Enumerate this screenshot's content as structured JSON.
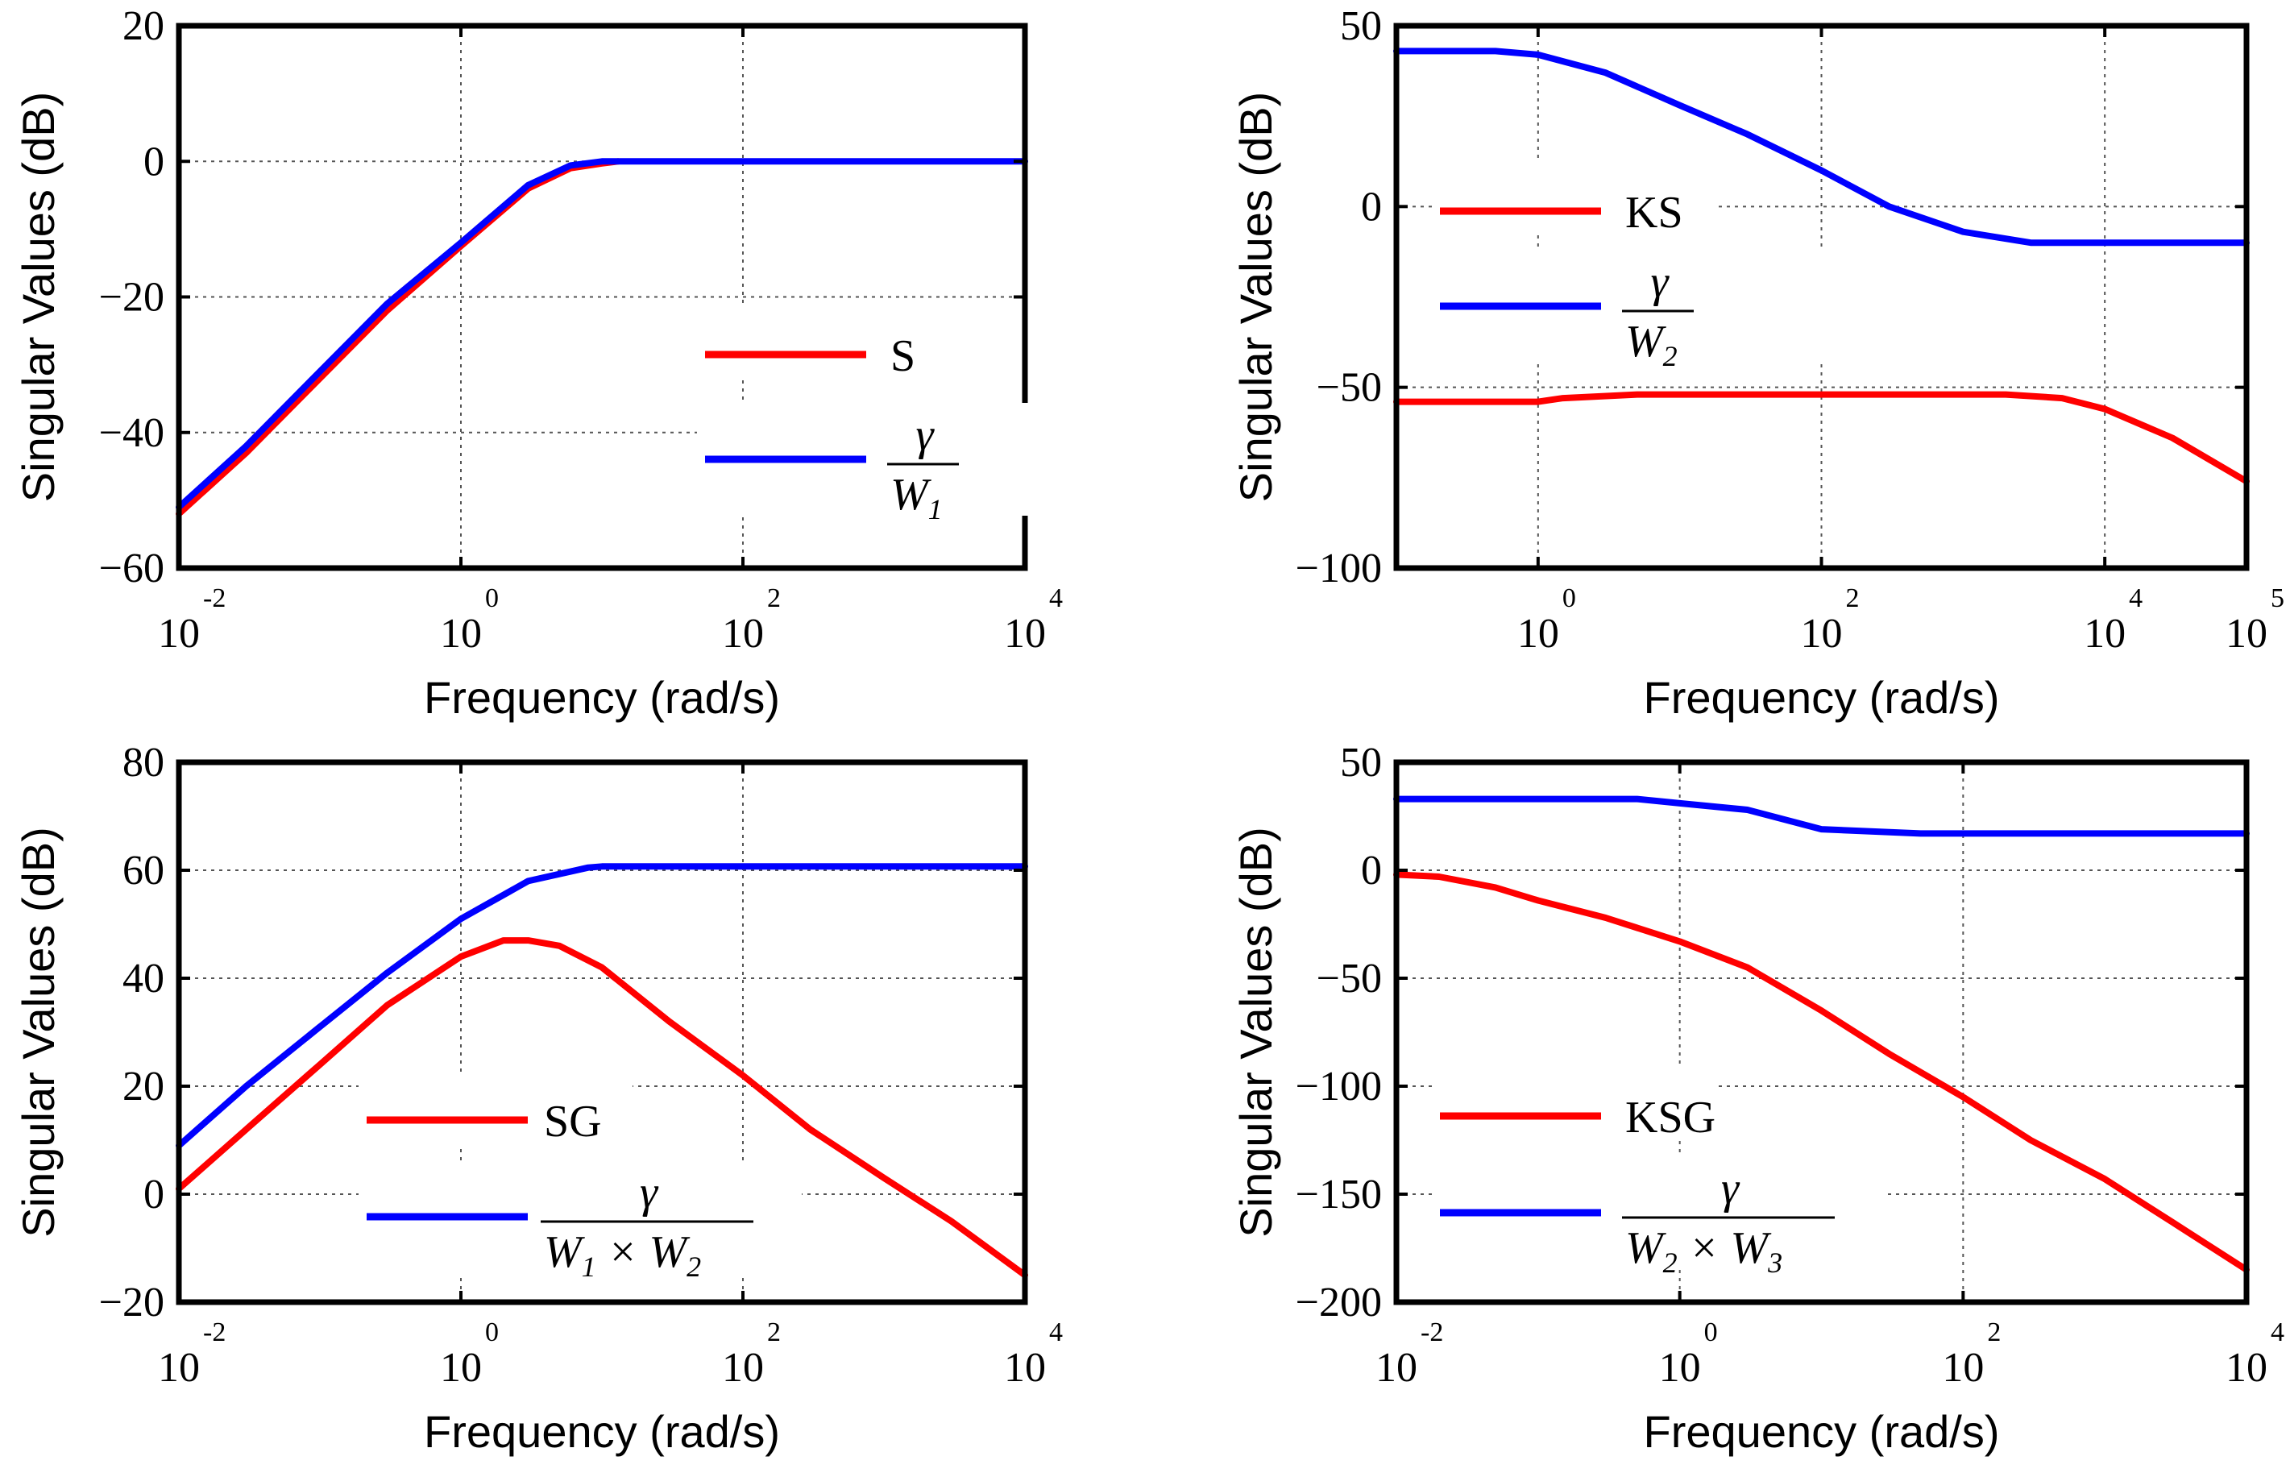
{
  "colors": {
    "red": "#ff0000",
    "blue": "#0000ff",
    "axis": "#000000",
    "grid": "#555555"
  },
  "chart_data": [
    {
      "type": "line",
      "xscale": "log",
      "xlim": [
        0.01,
        10000
      ],
      "ylim": [
        -60,
        20
      ],
      "grid": true,
      "xlabel": "Frequency (rad/s)",
      "ylabel": "Singular Values (dB)",
      "legend_placement": "right",
      "yticks": [
        "20",
        "0",
        "−20",
        "−40",
        "−60"
      ],
      "ytick_values": [
        20,
        0,
        -20,
        -40,
        -60
      ],
      "xticks": [
        {
          "base": "10",
          "exp": "-2"
        },
        {
          "base": "10",
          "exp": "0"
        },
        {
          "base": "10",
          "exp": "2"
        },
        {
          "base": "10",
          "exp": "4"
        }
      ],
      "xtick_values": [
        0.01,
        1,
        100,
        10000
      ],
      "legend": [
        {
          "text": "S",
          "color": "red"
        },
        {
          "num": "γ",
          "den": "W",
          "sub": "1",
          "color": "blue"
        }
      ],
      "series": [
        {
          "legend": "S",
          "color": "red",
          "x": [
            0.01,
            0.03,
            0.1,
            0.3,
            1,
            3,
            6,
            10,
            13
          ],
          "y": [
            -52,
            -43,
            -32,
            -22,
            -12.5,
            -4,
            -1,
            -0.3,
            0
          ]
        },
        {
          "legend": "gamma/W1",
          "color": "blue",
          "x": [
            0.01,
            0.03,
            0.1,
            0.3,
            1,
            3,
            6,
            10,
            100,
            1000,
            10000
          ],
          "y": [
            -51,
            -42,
            -31,
            -21,
            -12,
            -3.5,
            -0.6,
            0,
            0,
            0,
            0
          ]
        }
      ]
    },
    {
      "type": "line",
      "xscale": "log",
      "xlim": [
        0.1,
        100000
      ],
      "ylim": [
        -100,
        50
      ],
      "grid": true,
      "xlabel": "Frequency (rad/s)",
      "ylabel": "Singular Values (dB)",
      "legend_placement": "left",
      "yticks": [
        "50",
        "0",
        "−50",
        "−100"
      ],
      "ytick_values": [
        50,
        0,
        -50,
        -100
      ],
      "xticks": [
        {
          "base": "10",
          "exp": "0"
        },
        {
          "base": "10",
          "exp": "2"
        },
        {
          "base": "10",
          "exp": "4"
        },
        {
          "base": "10",
          "exp": "5"
        }
      ],
      "xtick_values": [
        1,
        100,
        10000,
        100000
      ],
      "legend": [
        {
          "text": "KS",
          "color": "red"
        },
        {
          "num": "γ",
          "den": "W",
          "sub": "2",
          "color": "blue"
        }
      ],
      "series": [
        {
          "legend": "KS",
          "color": "red",
          "x": [
            0.1,
            1,
            1.5,
            5,
            100,
            1000,
            2000,
            5000,
            10000,
            30000,
            100000
          ],
          "y": [
            -54,
            -54,
            -53,
            -52,
            -52,
            -52,
            -52,
            -53,
            -56,
            -64,
            -76
          ]
        },
        {
          "legend": "gamma/W2",
          "color": "blue",
          "x": [
            0.1,
            0.5,
            1,
            3,
            10,
            30,
            100,
            300,
            1000,
            3000,
            100000
          ],
          "y": [
            43,
            43,
            42,
            37,
            28,
            20,
            10,
            0,
            -7,
            -10,
            -10
          ]
        }
      ]
    },
    {
      "type": "line",
      "xscale": "log",
      "xlim": [
        0.01,
        10000
      ],
      "ylim": [
        -20,
        80
      ],
      "grid": true,
      "xlabel": "Frequency (rad/s)",
      "ylabel": "Singular Values (dB)",
      "legend_placement": "bottom-center",
      "yticks": [
        "80",
        "60",
        "40",
        "20",
        "0",
        "−20"
      ],
      "ytick_values": [
        80,
        60,
        40,
        20,
        0,
        -20
      ],
      "xticks": [
        {
          "base": "10",
          "exp": "-2"
        },
        {
          "base": "10",
          "exp": "0"
        },
        {
          "base": "10",
          "exp": "2"
        },
        {
          "base": "10",
          "exp": "4"
        }
      ],
      "xtick_values": [
        0.01,
        1,
        100,
        10000
      ],
      "legend": [
        {
          "text": "SG",
          "color": "red"
        },
        {
          "num": "γ",
          "den": "W₁ × W₂",
          "den_parts": [
            "W",
            "1",
            " × ",
            "W",
            "2"
          ],
          "color": "blue"
        }
      ],
      "series": [
        {
          "legend": "SG",
          "color": "red",
          "x": [
            0.01,
            0.03,
            0.1,
            0.3,
            1,
            2,
            3,
            5,
            10,
            30,
            100,
            300,
            1000,
            3000,
            10000
          ],
          "y": [
            1,
            12,
            24,
            35,
            44,
            47,
            47,
            46,
            42,
            32,
            22,
            12,
            3,
            -5,
            -15
          ]
        },
        {
          "legend": "gamma/(W1xW2)",
          "color": "blue",
          "x": [
            0.01,
            0.03,
            0.1,
            0.3,
            1,
            3,
            8,
            10,
            100,
            1000,
            10000
          ],
          "y": [
            9,
            20,
            31,
            41,
            51,
            58,
            60.5,
            60.7,
            60.7,
            60.7,
            60.7
          ]
        }
      ]
    },
    {
      "type": "line",
      "xscale": "log",
      "xlim": [
        0.01,
        10000
      ],
      "ylim": [
        -200,
        50
      ],
      "grid": true,
      "xlabel": "Frequency (rad/s)",
      "ylabel": "Singular Values (dB)",
      "legend_placement": "bottom-left",
      "yticks": [
        "50",
        "0",
        "−50",
        "−100",
        "−150",
        "−200"
      ],
      "ytick_values": [
        50,
        0,
        -50,
        -100,
        -150,
        -200
      ],
      "xticks": [
        {
          "base": "10",
          "exp": "-2"
        },
        {
          "base": "10",
          "exp": "0"
        },
        {
          "base": "10",
          "exp": "2"
        },
        {
          "base": "10",
          "exp": "4"
        }
      ],
      "xtick_values": [
        0.01,
        1,
        100,
        10000
      ],
      "legend": [
        {
          "text": "KSG",
          "color": "red"
        },
        {
          "num": "γ",
          "den": "W₂ × W₃",
          "den_parts": [
            "W",
            "2",
            " × ",
            "W",
            "3"
          ],
          "color": "blue"
        }
      ],
      "series": [
        {
          "legend": "KSG",
          "color": "red",
          "x": [
            0.01,
            0.02,
            0.05,
            0.1,
            0.3,
            1,
            3,
            10,
            30,
            100,
            300,
            1000,
            3000,
            10000
          ],
          "y": [
            -2,
            -3,
            -8,
            -14,
            -22,
            -33,
            -45,
            -65,
            -85,
            -105,
            -125,
            -143,
            -163,
            -185
          ]
        },
        {
          "legend": "gamma/(W2xW3)",
          "color": "blue",
          "x": [
            0.01,
            0.5,
            1,
            3,
            10,
            50,
            100,
            1000,
            10000
          ],
          "y": [
            33,
            33,
            31,
            28,
            19,
            17,
            17,
            17,
            17
          ]
        }
      ]
    }
  ]
}
